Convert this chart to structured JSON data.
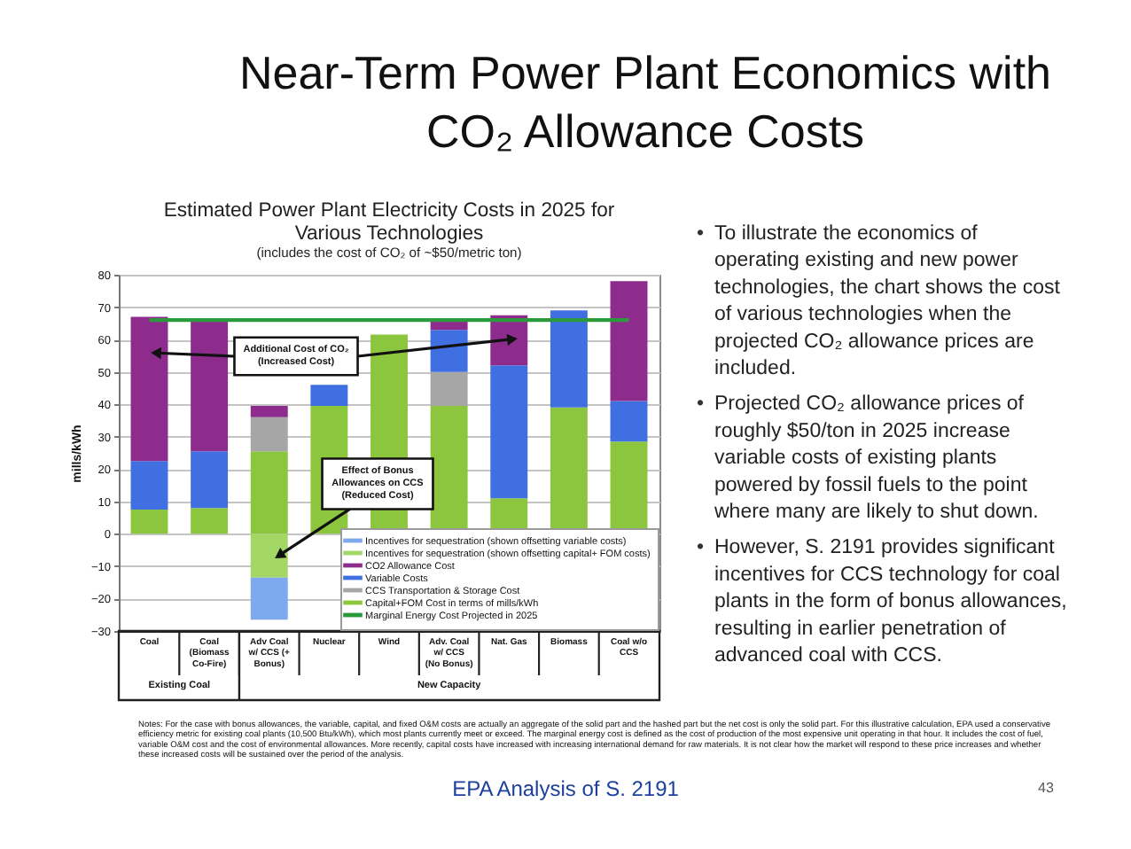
{
  "chart_data": {
    "type": "bar",
    "title": "Estimated Power Plant Electricity Costs in 2025 for Various Technologies",
    "subtitle": "(includes the cost of CO₂ of ~$50/metric ton)",
    "ylabel": "mills/kWh",
    "categories": [
      "Coal",
      "Coal (Biomass Co-Fire)",
      "Adv Coal w/ CCS (+ Bonus)",
      "Nuclear",
      "Wind",
      "Adv. Coal w/ CCS (No Bonus)",
      "Nat. Gas",
      "Biomass",
      "Coal w/o CCS"
    ],
    "stacked": true,
    "series": [
      {
        "name": "Capital+FOM Cost in terms of mills/kWh",
        "color": "#8cc63e",
        "values": [
          7.5,
          8,
          25.5,
          39.5,
          61.5,
          39.5,
          11,
          39,
          28.5
        ]
      },
      {
        "name": "CCS Transportation & Storage Cost",
        "color": "#a6a6a6",
        "values": [
          null,
          null,
          10.5,
          null,
          null,
          10.5,
          null,
          null,
          null
        ]
      },
      {
        "name": "Variable Costs",
        "color": "#3f6fe0",
        "values": [
          15,
          17.5,
          null,
          6.5,
          null,
          13,
          41,
          30,
          12.5
        ]
      },
      {
        "name": "CO2 Allowance Cost",
        "color": "#8e2c8e",
        "values": [
          44.5,
          40.5,
          3.5,
          null,
          null,
          2.5,
          15.5,
          null,
          37
        ]
      },
      {
        "name": "Incentives for sequestration (shown offsetting capital+ FOM costs)",
        "color": "#a3d765",
        "values": [
          null,
          null,
          -13.5,
          null,
          null,
          null,
          null,
          null,
          null
        ]
      },
      {
        "name": "Incentives for sequestration (shown offsetting variable costs)",
        "color": "#7fa9ee",
        "values": [
          null,
          null,
          -13,
          null,
          null,
          null,
          null,
          null,
          null
        ]
      },
      {
        "name": "Marginal Energy Cost Projected in 2025",
        "type": "line",
        "color": "#2a9a3c",
        "values": [
          66,
          66,
          66,
          66,
          66,
          66,
          66,
          66,
          66
        ]
      }
    ],
    "ylim": [
      -30,
      80
    ],
    "yticks": [
      -30,
      -20,
      -10,
      0,
      10,
      20,
      30,
      40,
      50,
      60,
      70,
      80
    ],
    "grid": "y",
    "legend": "bottom right",
    "annotations": [
      "Near-Term Power Plant Economics with CO₂ Allowance Costs",
      "Additional Cost of CO₂ (Increased Cost)",
      "Effect of Bonus Allowances on CCS (Reduced Cost)",
      "Existing Coal",
      "New Capacity",
      "• To illustrate the economics of operating existing and new power technologies, the chart shows the cost of various technologies when the projected CO₂ allowance prices are included.",
      "• Projected CO₂ allowance prices of roughly $50/ton in 2025 increase variable costs of existing plants powered by fossil fuels to the point where many are likely to shut down.",
      "• However, S. 2191 provides significant incentives for CCS technology for coal plants in the form of bonus allowances, resulting in earlier penetration of advanced coal with CCS.",
      "Notes: For the case with bonus allowances, the variable, capital, and fixed O&M costs are actually an aggregate of the solid part and the hashed part but the net cost is only the solid part. For this illustrative calculation, EPA used a conservative efficiency metric for existing coal plants (10,500 Btu/kWh), which most plants currently meet or exceed. The marginal energy cost is defined as the cost of production of the most expensive unit operating in that hour. It includes the cost of fuel, variable O&M cost and the cost of environmental allowances. More recently, capital costs have increased with increasing international demand for raw materials. It is not clear how the market will respond to these price increases and whether these increased costs will be sustained over the period of the analysis.",
      "EPA Analysis of S. 2191",
      "43"
    ]
  }
}
